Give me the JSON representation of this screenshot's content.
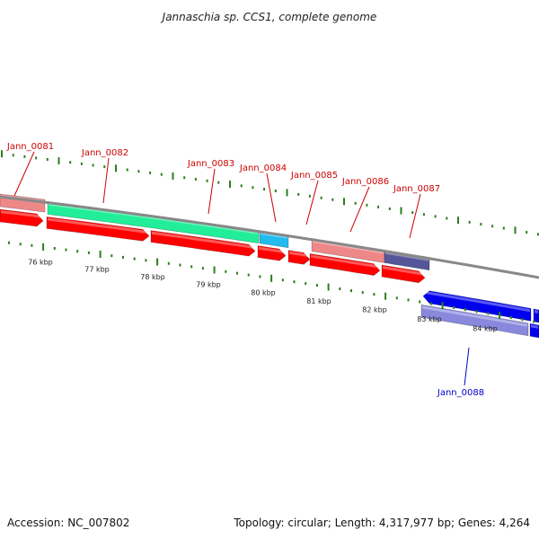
{
  "title": "Jannaschia sp. CCS1, complete genome",
  "accession": "Accession: NC_007802",
  "summary": "Topology: circular; Length: 4,317,977 bp; Genes: 4,264",
  "colors": {
    "backbone": "#888888",
    "tick": "#2e7d1e",
    "label_plus": "#cc0000",
    "label_minus": "#0000cc",
    "cds": "#ff0000",
    "green": "#22ee99",
    "cyan": "#22bbee",
    "salmon": "#ee8888",
    "slate": "#555599",
    "blue": "#0000ee",
    "lavender": "#8888dd"
  },
  "scale_labels": [
    "76 kbp",
    "77 kbp",
    "78 kbp",
    "79 kbp",
    "80 kbp",
    "81 kbp",
    "82 kbp",
    "83 kbp",
    "84 kbp"
  ],
  "gene_labels": [
    {
      "name": "Jann_0081",
      "strand": "plus"
    },
    {
      "name": "Jann_0082",
      "strand": "plus"
    },
    {
      "name": "Jann_0083",
      "strand": "plus"
    },
    {
      "name": "Jann_0084",
      "strand": "plus"
    },
    {
      "name": "Jann_0085",
      "strand": "plus"
    },
    {
      "name": "Jann_0086",
      "strand": "plus"
    },
    {
      "name": "Jann_0087",
      "strand": "plus"
    },
    {
      "name": "Jann_0088",
      "strand": "minus"
    }
  ]
}
